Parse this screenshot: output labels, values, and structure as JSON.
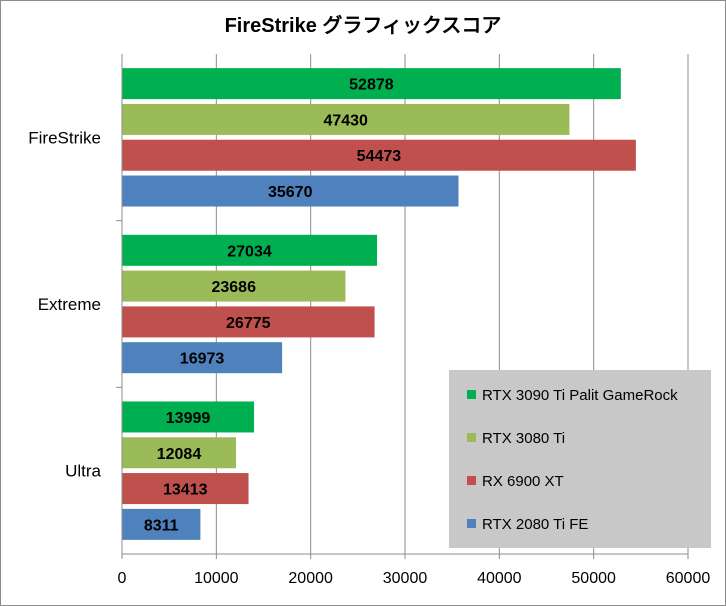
{
  "chart_data": {
    "type": "bar",
    "orientation": "horizontal",
    "title": "FireStrike グラフィックスコア",
    "categories": [
      "FireStrike",
      "Extreme",
      "Ultra"
    ],
    "series": [
      {
        "name": "RTX 3090 Ti Palit GameRock",
        "color": "#00b050",
        "values": [
          52878,
          27034,
          13999
        ]
      },
      {
        "name": "RTX 3080 Ti",
        "color": "#9bbb59",
        "values": [
          47430,
          23686,
          12084
        ]
      },
      {
        "name": "RX 6900 XT",
        "color": "#c0504d",
        "values": [
          54473,
          26775,
          13413
        ]
      },
      {
        "name": "RTX 2080 Ti FE",
        "color": "#4f81bd",
        "values": [
          35670,
          16973,
          8311
        ]
      }
    ],
    "xlim": [
      0,
      60000
    ],
    "xticks": [
      "0",
      "10000",
      "20000",
      "30000",
      "40000",
      "50000",
      "60000"
    ],
    "grid": true,
    "legend_position": "bottom-right",
    "legend_background": "#c8c8c8",
    "gridline_color": "#8c8c8c"
  }
}
